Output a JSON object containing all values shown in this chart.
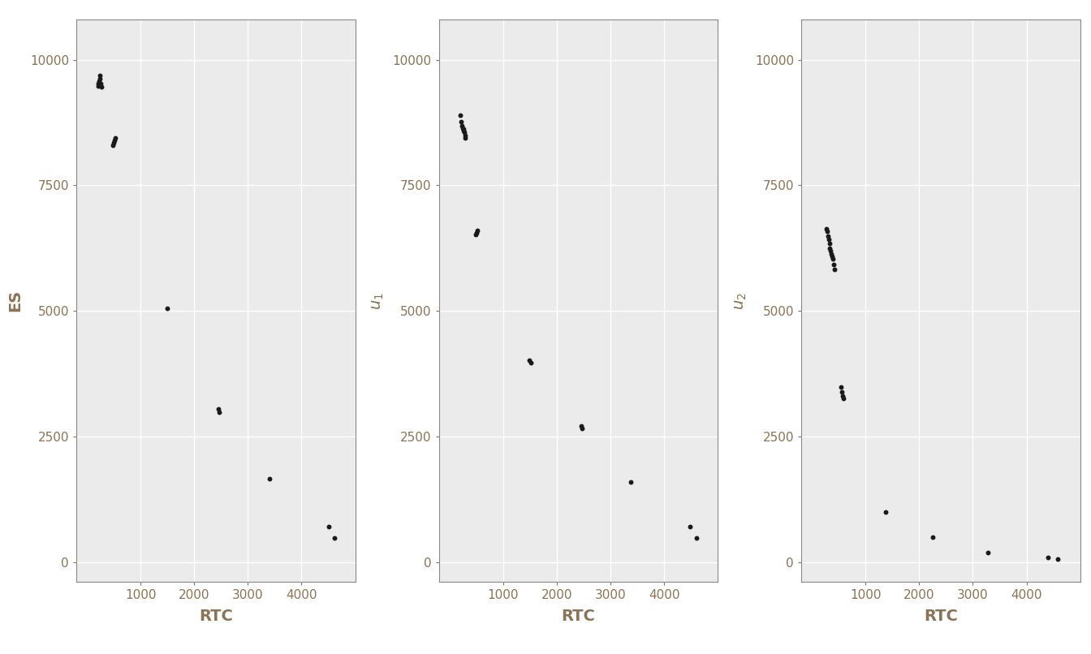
{
  "panels": [
    {
      "ylabel": "ES",
      "xlabel": "RTC",
      "points_x": [
        200,
        210,
        225,
        235,
        245,
        255,
        265,
        480,
        495,
        510,
        525,
        1500,
        2450,
        2470,
        3400,
        4500,
        4620
      ],
      "points_y": [
        9480,
        9530,
        9580,
        9630,
        9680,
        9530,
        9460,
        8300,
        8340,
        8390,
        8440,
        5050,
        3040,
        2990,
        1650,
        700,
        480
      ]
    },
    {
      "ylabel": "u_1",
      "xlabel": "RTC",
      "points_x": [
        200,
        215,
        230,
        245,
        255,
        265,
        275,
        285,
        295,
        490,
        505,
        520,
        1490,
        1510,
        2450,
        2470,
        3380,
        4480,
        4600
      ],
      "points_y": [
        8900,
        8760,
        8680,
        8640,
        8620,
        8590,
        8560,
        8500,
        8450,
        6520,
        6560,
        6600,
        4020,
        3970,
        2700,
        2660,
        1590,
        700,
        480
      ]
    },
    {
      "ylabel": "u_2",
      "xlabel": "RTC",
      "points_x": [
        270,
        285,
        300,
        315,
        325,
        335,
        345,
        360,
        370,
        385,
        400,
        415,
        540,
        560,
        575,
        590,
        1380,
        2250,
        3280,
        4400,
        4580
      ],
      "points_y": [
        6640,
        6580,
        6490,
        6430,
        6340,
        6250,
        6190,
        6140,
        6080,
        6030,
        5930,
        5830,
        3480,
        3390,
        3310,
        3250,
        1000,
        490,
        195,
        95,
        50
      ]
    }
  ],
  "background_color": "#ffffff",
  "panel_bg": "#ebebeb",
  "grid_color": "#ffffff",
  "text_color": "#8B7355",
  "dot_color": "#1a1a1a",
  "dot_size": 18,
  "xlim": [
    -200,
    5000
  ],
  "ylim": [
    -400,
    10800
  ],
  "xticks": [
    1000,
    2000,
    3000,
    4000
  ],
  "yticks": [
    0,
    2500,
    5000,
    7500,
    10000
  ],
  "tick_fontsize": 11,
  "label_fontsize": 14
}
